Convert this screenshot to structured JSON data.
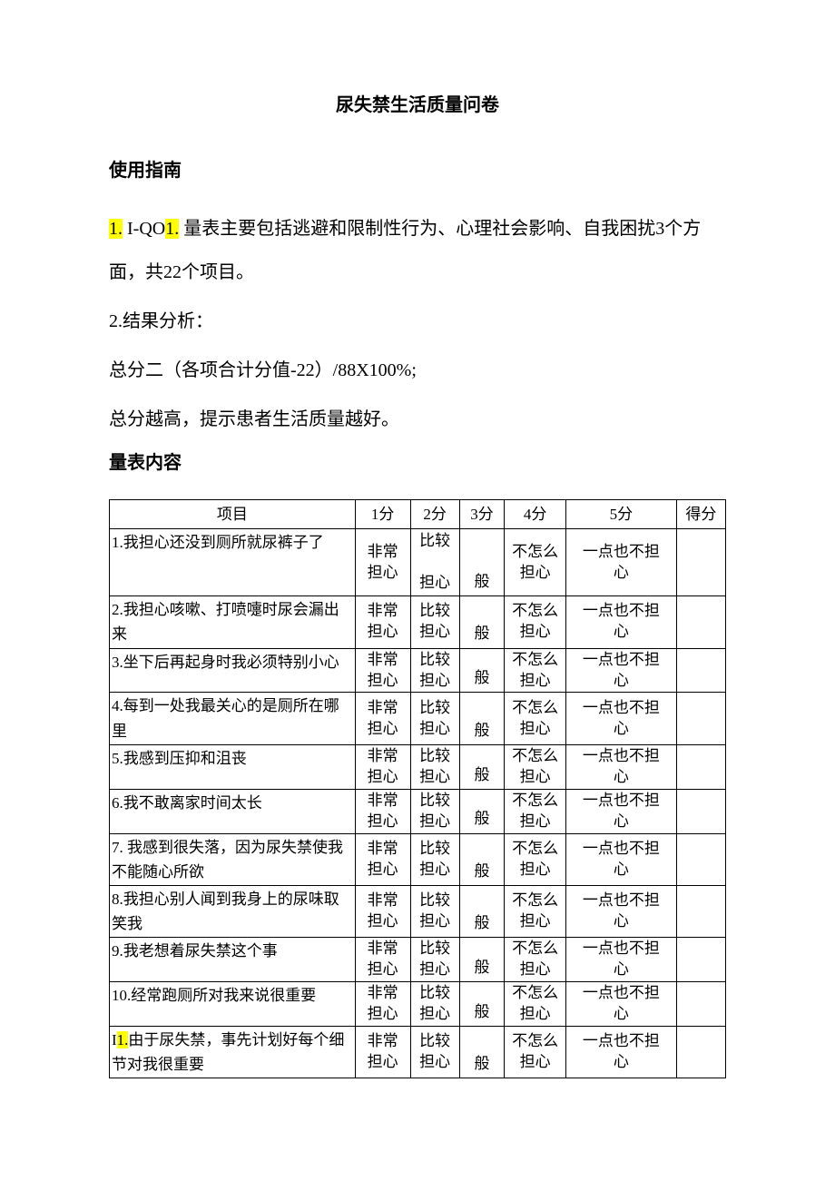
{
  "title": "尿失禁生活质量问卷",
  "guide": {
    "heading": "使用指南",
    "p1_h1": "1.",
    "p1_mid": " I-QO",
    "p1_h2": "1.",
    "p1_rest": " 量表主要包括逃避和限制性行为、心理社会影响、自我困扰3个方面，共22个项目。",
    "p2": "2.结果分析：",
    "p3": "总分二（各项合计分值-22）/88X100%;",
    "p4": "总分越高，提示患者生活质量越好。"
  },
  "content_heading": "量表内容",
  "columns": {
    "item": "项目",
    "c1": "1分",
    "c2": "2分",
    "c3": "3分",
    "c4": "4分",
    "c5": "5分",
    "score": "得分"
  },
  "labels": {
    "veryWorried": "非常担心",
    "ratherWorried1": "比较",
    "ratherWorried2": "担心",
    "ratherWorriedJoin": "比较担心",
    "general": "般",
    "notMuch": "不怎么担心",
    "notAtAll": "一点也不担心"
  },
  "rows": [
    {
      "n": "1",
      "text": "1.我担心还没到厕所就尿裤子了",
      "three": true
    },
    {
      "n": "2",
      "text": "2.我担心咳嗽、打喷嚏时尿会漏出来"
    },
    {
      "n": "3",
      "text": "3.坐下后再起身时我必须特别小心"
    },
    {
      "n": "4",
      "text": "4.每到一处我最关心的是厕所在哪里"
    },
    {
      "n": "5",
      "text": "5.我感到压抑和沮丧"
    },
    {
      "n": "6",
      "text": "6.我不敢离家时间太长"
    },
    {
      "n": "7",
      "text": "7. 我感到很失落，因为尿失禁使我不能随心所欲"
    },
    {
      "n": "8",
      "text": "8.我担心别人闻到我身上的尿味取笑我"
    },
    {
      "n": "9",
      "text": "9.我老想着尿失禁这个事"
    },
    {
      "n": "10",
      "text": "10.经常跑厕所对我来说很重要"
    },
    {
      "n": "11",
      "pre": "I",
      "hl": "1.",
      "rest": "由于尿失禁，事先计划好每个细节对我很重要"
    }
  ]
}
